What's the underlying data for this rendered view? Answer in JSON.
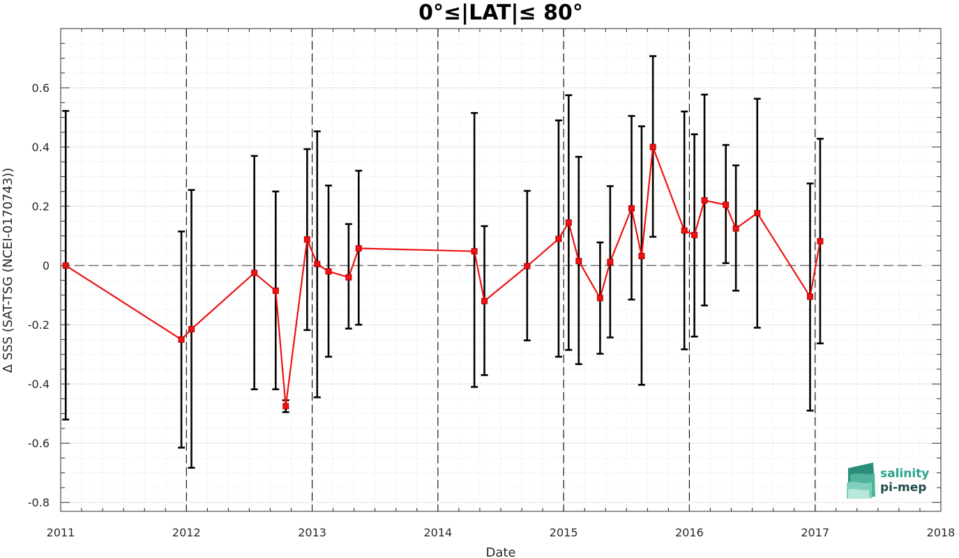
{
  "chart_data": {
    "type": "line",
    "title": "0°≤|LAT|≤ 80°",
    "xlabel": "Date",
    "ylabel": "Δ SSS (SAT-TSG (NCEI-0170743))",
    "xlim": [
      2011.0,
      2018.0
    ],
    "ylim": [
      -0.83,
      0.8
    ],
    "x_ticks": [
      2011,
      2012,
      2013,
      2014,
      2015,
      2016,
      2017,
      2018
    ],
    "x_tick_labels": [
      "2011",
      "2012",
      "2013",
      "2014",
      "2015",
      "2016",
      "2017",
      "2018"
    ],
    "y_ticks": [
      0.6,
      0.4,
      0.2,
      0,
      -0.2,
      -0.4,
      -0.6,
      -0.8
    ],
    "y_tick_labels": [
      "0.6",
      "0.4",
      "0.2",
      "0",
      "-0.2",
      "-0.4",
      "-0.6",
      "-0.8"
    ],
    "grid": true,
    "minor_grid": true,
    "reference_line_y": 0,
    "year_boundary_lines": [
      2012,
      2013,
      2014,
      2015,
      2016,
      2017
    ],
    "colors": {
      "series": "#ee1111",
      "error_bar": "#000000",
      "axes": "#262626"
    },
    "series": [
      {
        "x": [
          2011.04,
          2011.96,
          2012.04,
          2012.54,
          2012.71,
          2012.79,
          2012.96,
          2013.04,
          2013.13,
          2013.29,
          2013.37,
          2014.29,
          2014.37,
          2014.71,
          2014.96,
          2015.04,
          2015.12,
          2015.29,
          2015.37,
          2015.54,
          2015.62,
          2015.71,
          2015.96,
          2016.04,
          2016.12,
          2016.29,
          2016.37,
          2016.54,
          2016.96,
          2017.04
        ],
        "y": [
          0.0,
          -0.25,
          -0.215,
          -0.025,
          -0.085,
          -0.475,
          0.088,
          0.005,
          -0.02,
          -0.04,
          0.058,
          0.048,
          -0.12,
          -0.002,
          0.09,
          0.145,
          0.015,
          -0.11,
          0.012,
          0.193,
          0.032,
          0.4,
          0.118,
          0.103,
          0.22,
          0.205,
          0.125,
          0.177,
          -0.105,
          0.082
        ],
        "err_low": [
          -0.52,
          -0.615,
          -0.683,
          -0.418,
          -0.418,
          -0.495,
          -0.218,
          -0.445,
          -0.308,
          -0.213,
          -0.2,
          -0.41,
          -0.37,
          -0.253,
          -0.308,
          -0.285,
          -0.333,
          -0.298,
          -0.243,
          -0.115,
          -0.403,
          0.097,
          -0.283,
          -0.24,
          -0.135,
          0.008,
          -0.085,
          -0.21,
          -0.49,
          -0.263
        ],
        "err_high": [
          0.522,
          0.115,
          0.255,
          0.37,
          0.25,
          -0.455,
          0.393,
          0.453,
          0.27,
          0.14,
          0.32,
          0.515,
          0.133,
          0.252,
          0.49,
          0.575,
          0.367,
          0.078,
          0.268,
          0.505,
          0.47,
          0.707,
          0.52,
          0.443,
          0.577,
          0.407,
          0.338,
          0.563,
          0.277,
          0.428
        ]
      }
    ]
  },
  "logo": {
    "line1": "salinity",
    "line2": "pi-mep"
  }
}
